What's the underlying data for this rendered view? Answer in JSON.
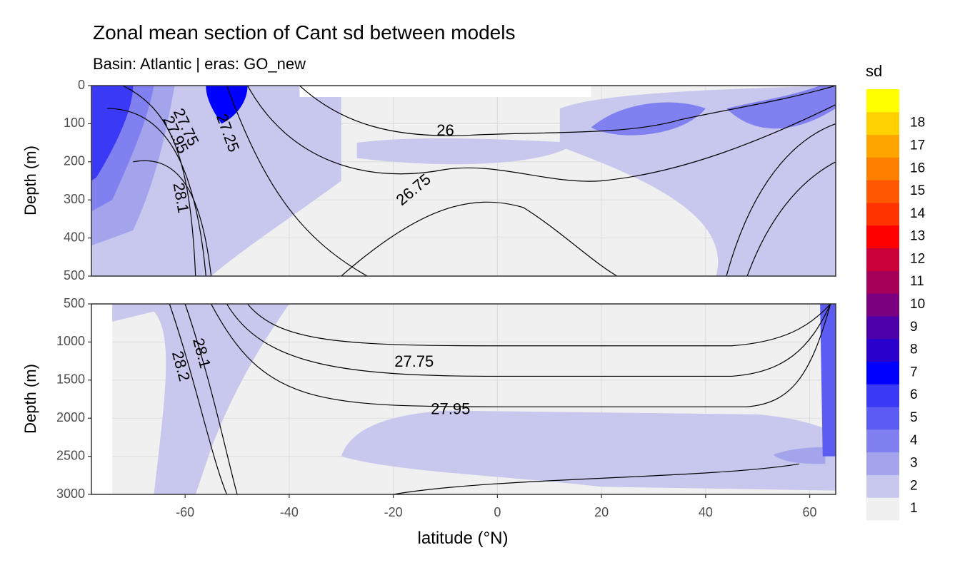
{
  "chart_data": {
    "type": "heatmap",
    "title": "Zonal mean section of Cant sd between models",
    "subtitle": "Basin: Atlantic | eras: GO_new",
    "xlabel": "latitude (°N)",
    "xlim": [
      -78,
      65
    ],
    "x_ticks": [
      "-60",
      "-40",
      "-20",
      "0",
      "20",
      "40",
      "60"
    ],
    "x_tick_values": [
      -60,
      -40,
      -20,
      0,
      20,
      40,
      60
    ],
    "panels": [
      {
        "name": "upper",
        "ylabel": "Depth (m)",
        "ylim": [
          0,
          500
        ],
        "y_ticks": [
          "0",
          "100",
          "200",
          "300",
          "400",
          "500"
        ],
        "y_tick_values": [
          0,
          100,
          200,
          300,
          400,
          500
        ],
        "contour_labels": [
          {
            "text": "27.75",
            "lat": -60,
            "depth": 110,
            "angle": 65
          },
          {
            "text": "27.95",
            "lat": -62,
            "depth": 130,
            "angle": 65
          },
          {
            "text": "27.25",
            "lat": -52,
            "depth": 125,
            "angle": 70
          },
          {
            "text": "28.1",
            "lat": -61,
            "depth": 295,
            "angle": 80
          },
          {
            "text": "26",
            "lat": -10,
            "depth": 120,
            "angle": 0
          },
          {
            "text": "26.75",
            "lat": -16,
            "depth": 275,
            "angle": -40
          }
        ]
      },
      {
        "name": "lower",
        "ylabel": "Depth (m)",
        "ylim": [
          500,
          3000
        ],
        "y_ticks": [
          "500",
          "1000",
          "1500",
          "2000",
          "2500",
          "3000"
        ],
        "y_tick_values": [
          500,
          1000,
          1500,
          2000,
          2500,
          3000
        ],
        "contour_labels": [
          {
            "text": "28.1",
            "lat": -57,
            "depth": 1150,
            "angle": 75
          },
          {
            "text": "28.2",
            "lat": -61,
            "depth": 1320,
            "angle": 75
          },
          {
            "text": "27.75",
            "lat": -16,
            "depth": 1270,
            "angle": 0
          },
          {
            "text": "27.95",
            "lat": -9,
            "depth": 1890,
            "angle": 0
          }
        ]
      }
    ],
    "legend": {
      "title": "sd",
      "position": "right",
      "levels": [
        "1",
        "2",
        "3",
        "4",
        "5",
        "6",
        "7",
        "8",
        "9",
        "10",
        "11",
        "12",
        "13",
        "14",
        "15",
        "16",
        "17",
        "18"
      ],
      "colors": [
        "#f0f0f0",
        "#c8c8ee",
        "#a4a4ec",
        "#8080f0",
        "#5c5cf2",
        "#3a3af6",
        "#0000ff",
        "#2a00cc",
        "#4e00a8",
        "#7a0080",
        "#a40058",
        "#cc0038",
        "#ff0000",
        "#ff3300",
        "#ff5800",
        "#ff8000",
        "#ffa500",
        "#ffd100",
        "#ffff00"
      ]
    }
  }
}
